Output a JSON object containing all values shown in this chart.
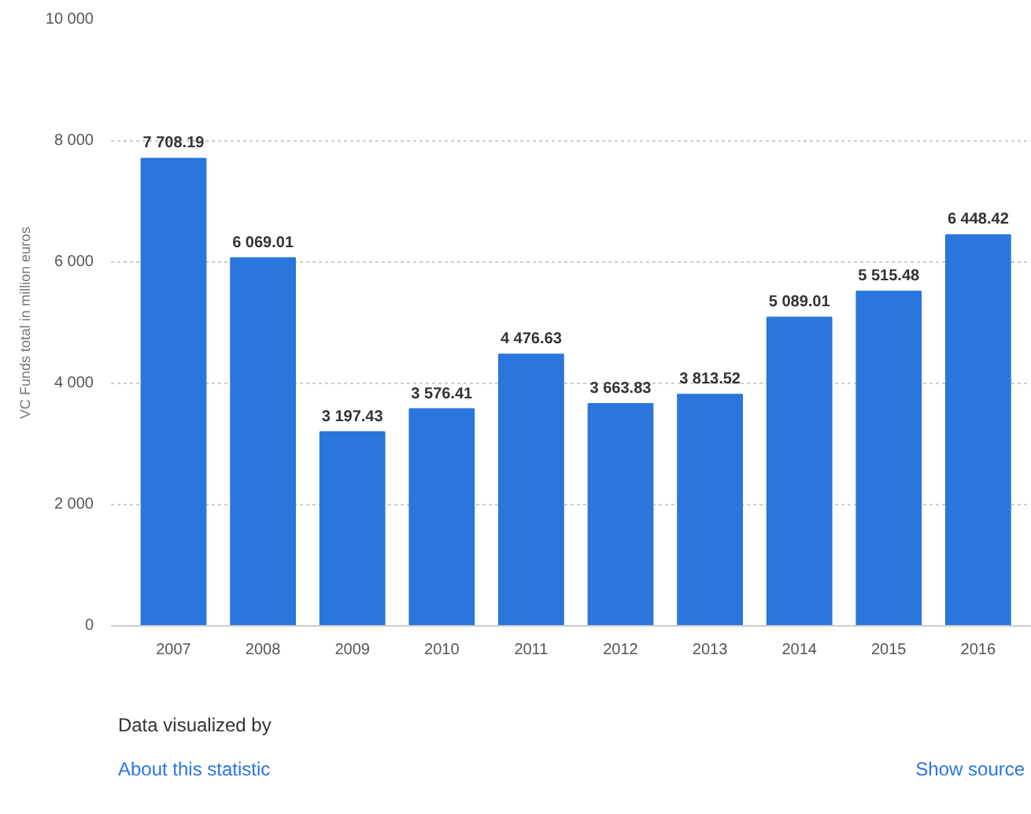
{
  "chart_data": {
    "type": "bar",
    "ylabel": "VC Funds total in million euros",
    "categories": [
      "2007",
      "2008",
      "2009",
      "2010",
      "2011",
      "2012",
      "2013",
      "2014",
      "2015",
      "2016"
    ],
    "values": [
      7708.19,
      6069.01,
      3197.43,
      3576.41,
      4476.63,
      3663.83,
      3813.52,
      5089.01,
      5515.48,
      6448.42
    ],
    "value_labels": [
      "7 708.19",
      "6 069.01",
      "3 197.43",
      "3 576.41",
      "4 476.63",
      "3 663.83",
      "3 813.52",
      "5 089.01",
      "5 515.48",
      "6 448.42"
    ],
    "color": "#2a76dd",
    "ylim": [
      0,
      10000
    ],
    "yticks": [
      0,
      {
        "value": 2000,
        "label": "2 000"
      },
      {
        "value": 4000,
        "label": "4 000"
      },
      {
        "value": 6000,
        "label": "6 000"
      },
      {
        "value": 8000,
        "label": "8 000"
      },
      {
        "value": 10000,
        "label": "10 000"
      }
    ],
    "grid": "y",
    "annotations": [
      "Data visualized by",
      "About this statistic",
      "Show source"
    ]
  }
}
